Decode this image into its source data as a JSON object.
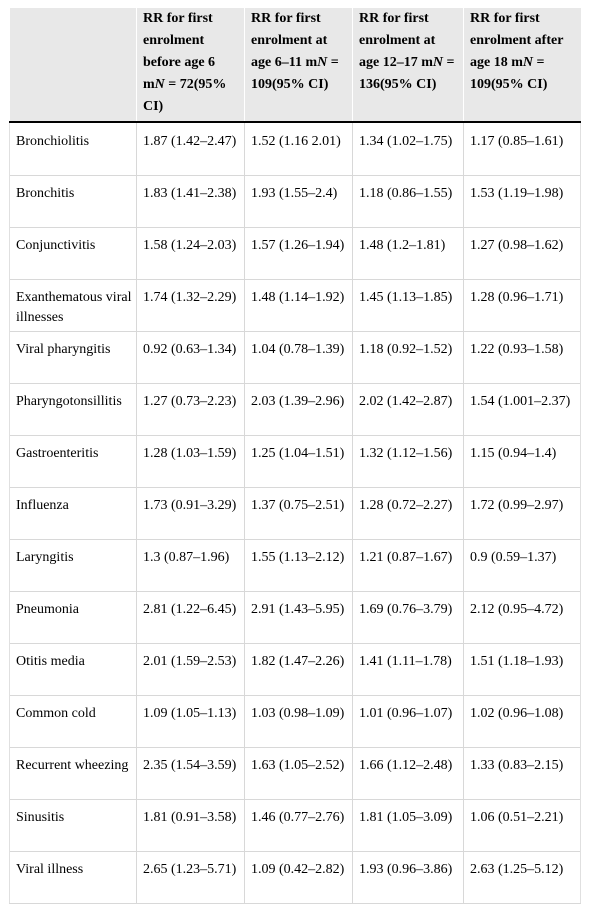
{
  "table": {
    "headers": [
      "",
      "RR for first enrolment before age 6 m⁠N = 72(95% CI)",
      "RR for first enrolment at age 6–11 m⁠N = 109(95% CI)",
      "RR for first enrolment at age 12–17 m⁠N = 136(95% CI)",
      "RR for first enrolment after age 18 m⁠N = 109(95% CI)"
    ],
    "headers_parts": [
      {
        "a": "",
        "n": "",
        "b": ""
      },
      {
        "a": "RR for first enrolment before age 6 m",
        "n": "N",
        "b": " = 72(95% CI)"
      },
      {
        "a": "RR for first enrolment at age 6–11 m",
        "n": "N",
        "b": " = 109(95% CI)"
      },
      {
        "a": "RR for first enrolment at age 12–17 m",
        "n": "N",
        "b": " = 136(95% CI)"
      },
      {
        "a": "RR for first enrolment after age 18 m",
        "n": "N",
        "b": " = 109(95% CI)"
      }
    ],
    "rows": [
      [
        "Bronchiolitis",
        "1.87 (1.42–2.47)",
        "1.52 (1.16 2.01)",
        "1.34 (1.02–1.75)",
        "1.17 (0.85–1.61)"
      ],
      [
        "Bronchitis",
        "1.83 (1.41–2.38)",
        "1.93 (1.55–2.4)",
        "1.18 (0.86–1.55)",
        "1.53 (1.19–1.98)"
      ],
      [
        "Conjunctivitis",
        "1.58 (1.24–2.03)",
        "1.57 (1.26–1.94)",
        "1.48 (1.2–1.81)",
        "1.27 (0.98–1.62)"
      ],
      [
        "Exanthematous viral illnesses",
        "1.74 (1.32–2.29)",
        "1.48 (1.14–1.92)",
        "1.45 (1.13–1.85)",
        "1.28 (0.96–1.71)"
      ],
      [
        "Viral pharyngitis",
        "0.92 (0.63–1.34)",
        "1.04 (0.78–1.39)",
        "1.18 (0.92–1.52)",
        "1.22 (0.93–1.58)"
      ],
      [
        "Pharyngotonsillitis",
        "1.27 (0.73–2.23)",
        "2.03 (1.39–2.96)",
        "2.02 (1.42–2.87)",
        "1.54 (1.001–2.37)"
      ],
      [
        "Gastroenteritis",
        "1.28 (1.03–1.59)",
        "1.25 (1.04–1.51)",
        "1.32 (1.12–1.56)",
        "1.15 (0.94–1.4)"
      ],
      [
        "Influenza",
        "1.73 (0.91–3.29)",
        "1.37 (0.75–2.51)",
        "1.28 (0.72–2.27)",
        "1.72 (0.99–2.97)"
      ],
      [
        "Laryngitis",
        "1.3 (0.87–1.96)",
        "1.55 (1.13–2.12)",
        "1.21 (0.87–1.67)",
        "0.9 (0.59–1.37)"
      ],
      [
        "Pneumonia",
        "2.81 (1.22–6.45)",
        "2.91 (1.43–5.95)",
        "1.69 (0.76–3.79)",
        "2.12 (0.95–4.72)"
      ],
      [
        "Otitis media",
        "2.01 (1.59–2.53)",
        "1.82 (1.47–2.26)",
        "1.41 (1.11–1.78)",
        "1.51 (1.18–1.93)"
      ],
      [
        "Common cold",
        "1.09 (1.05–1.13)",
        "1.03 (0.98–1.09)",
        "1.01 (0.96–1.07)",
        "1.02 (0.96–1.08)"
      ],
      [
        "Recurrent wheezing",
        "2.35 (1.54–3.59)",
        "1.63 (1.05–2.52)",
        "1.66 (1.12–2.48)",
        "1.33 (0.83–2.15)"
      ],
      [
        "Sinusitis",
        "1.81 (0.91–3.58)",
        "1.46 (0.77–2.76)",
        "1.81 (1.05–3.09)",
        "1.06 (0.51–2.21)"
      ],
      [
        "Viral illness",
        "2.65 (1.23–5.71)",
        "1.09 (0.42–2.82)",
        "1.93 (0.96–3.86)",
        "2.63 (1.25–5.12)"
      ]
    ]
  }
}
